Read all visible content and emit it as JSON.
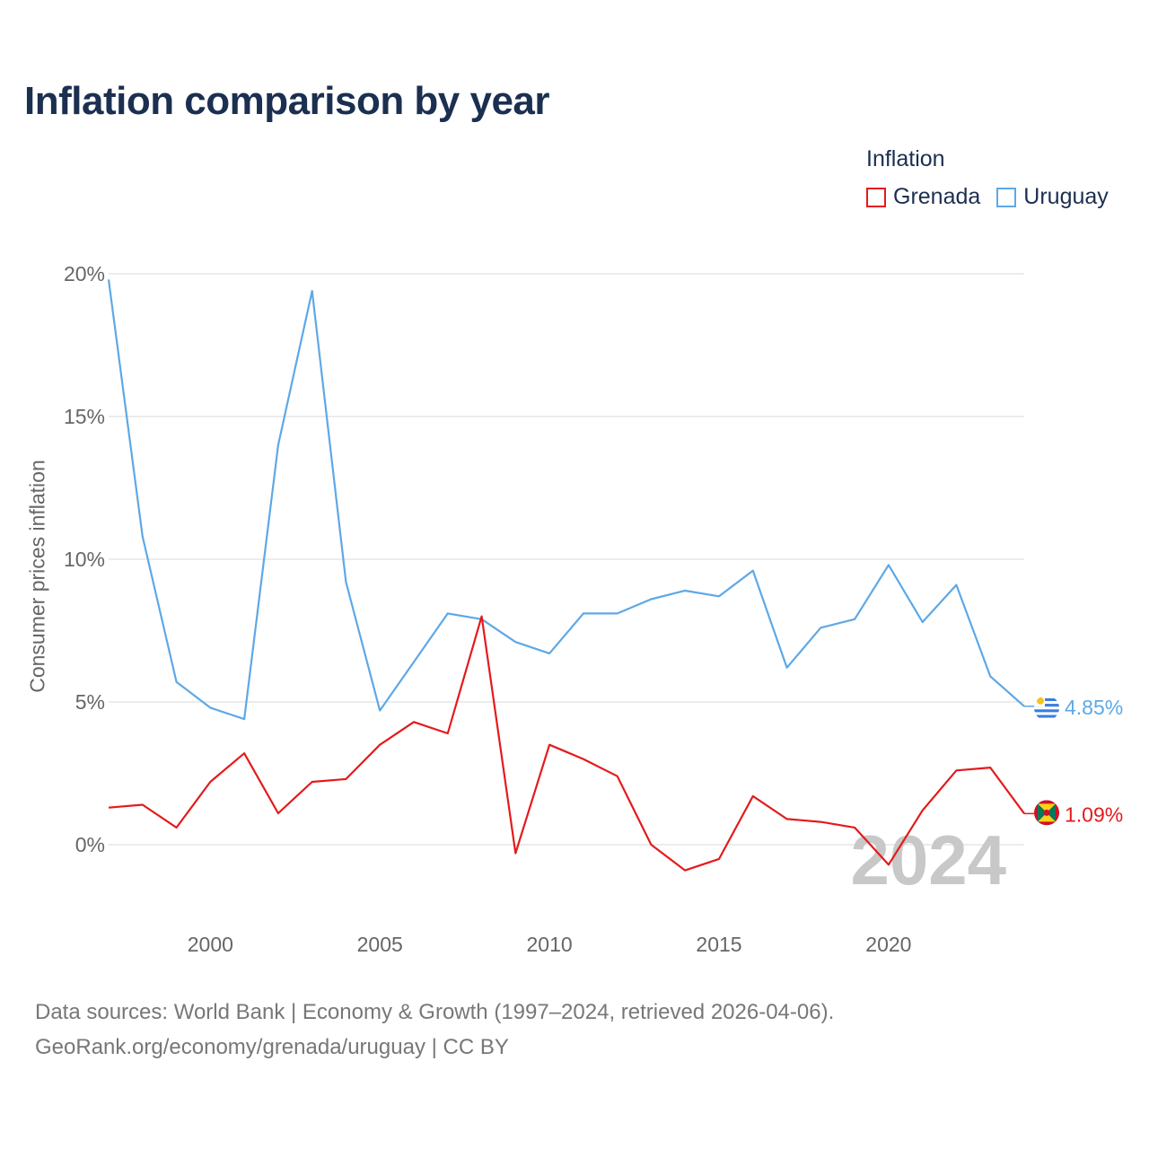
{
  "title": "Inflation comparison by year",
  "legend": {
    "title": "Inflation",
    "items": [
      {
        "label": "Grenada",
        "color": "#e41a1c"
      },
      {
        "label": "Uruguay",
        "color": "#5ea8e6"
      }
    ]
  },
  "footer": {
    "line1": "Data sources: World Bank | Economy & Growth (1997–2024, retrieved 2026-04-06).",
    "line2": "GeoRank.org/economy/grenada/uruguay | CC BY"
  },
  "chart_data": {
    "type": "line",
    "title": "Inflation comparison by year",
    "xlabel": "",
    "ylabel": "Consumer prices inflation",
    "x": [
      1997,
      1998,
      1999,
      2000,
      2001,
      2002,
      2003,
      2004,
      2005,
      2006,
      2007,
      2008,
      2009,
      2010,
      2011,
      2012,
      2013,
      2014,
      2015,
      2016,
      2017,
      2018,
      2019,
      2020,
      2021,
      2022,
      2023,
      2024
    ],
    "xlim": [
      1997,
      2024
    ],
    "ylim": [
      -3,
      20
    ],
    "x_ticks": [
      2000,
      2005,
      2010,
      2015,
      2020
    ],
    "y_ticks": [
      0,
      5,
      10,
      15,
      20
    ],
    "y_tick_labels": [
      "0%",
      "5%",
      "10%",
      "15%",
      "20%"
    ],
    "watermark": "2024",
    "series": [
      {
        "name": "Uruguay",
        "color": "#5ea8e6",
        "end_label": "4.85%",
        "flag": "uruguay-flag-icon",
        "values": [
          19.8,
          10.8,
          5.7,
          4.8,
          4.4,
          14.0,
          19.4,
          9.2,
          4.7,
          6.4,
          8.1,
          7.9,
          7.1,
          6.7,
          8.1,
          8.1,
          8.6,
          8.9,
          8.7,
          9.6,
          6.2,
          7.6,
          7.9,
          9.8,
          7.8,
          9.1,
          5.9,
          4.85
        ]
      },
      {
        "name": "Grenada",
        "color": "#e41a1c",
        "end_label": "1.09%",
        "flag": "grenada-flag-icon",
        "values": [
          1.3,
          1.4,
          0.6,
          2.2,
          3.2,
          1.1,
          2.2,
          2.3,
          3.5,
          4.3,
          3.9,
          8.0,
          -0.3,
          3.5,
          3.0,
          2.4,
          0.0,
          -0.9,
          -0.5,
          1.7,
          0.9,
          0.8,
          0.6,
          -0.7,
          1.2,
          2.6,
          2.7,
          1.09
        ]
      }
    ]
  }
}
